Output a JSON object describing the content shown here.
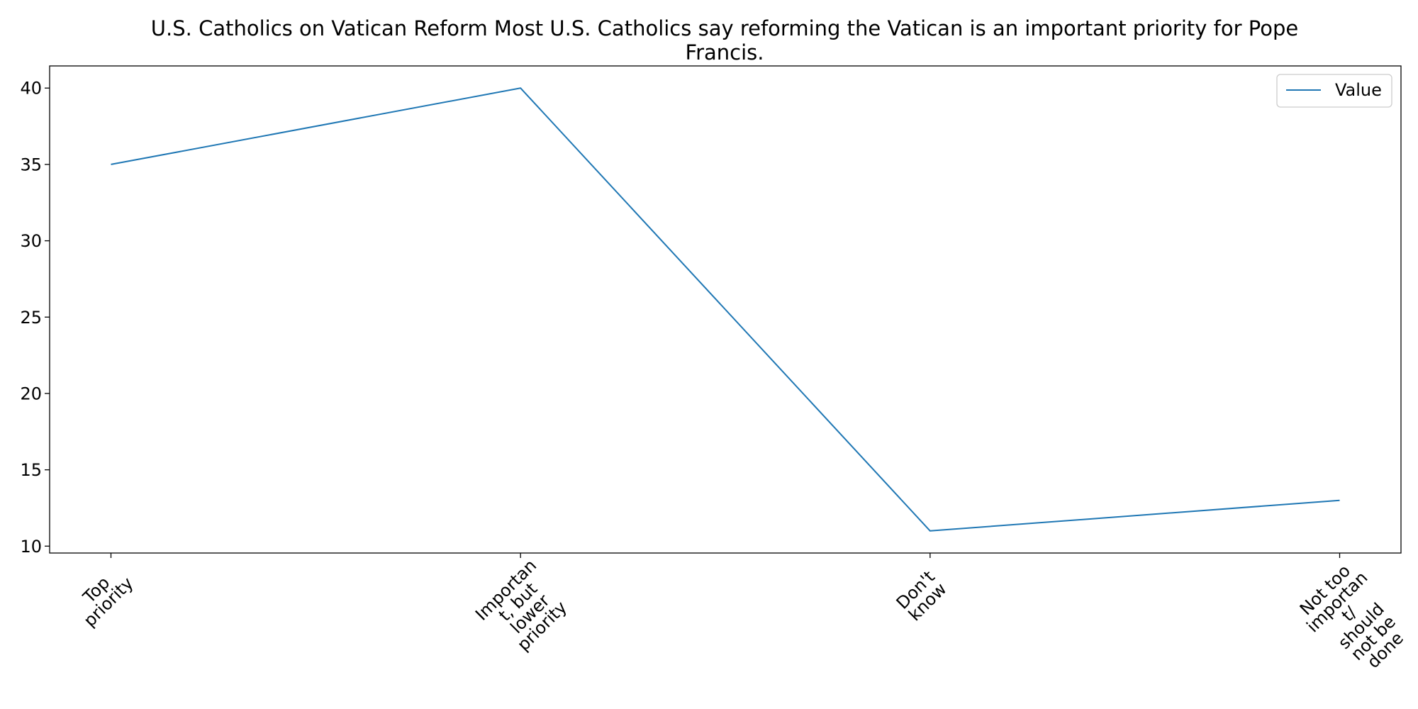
{
  "chart_data": {
    "type": "line",
    "title_lines": [
      "U.S. Catholics on Vatican Reform Most U.S. Catholics say reforming the Vatican is an important priority for Pope",
      "Francis."
    ],
    "categories": [
      [
        "Top",
        "priority"
      ],
      [
        "Importan",
        "t, but",
        "lower",
        "priority"
      ],
      [
        "Don't",
        "know"
      ],
      [
        "Not too",
        "importan",
        "t/",
        "should",
        "not be",
        "done"
      ]
    ],
    "series": [
      {
        "name": "Value",
        "color": "#1f77b4",
        "values": [
          35,
          40,
          11,
          13
        ]
      }
    ],
    "y_ticks": [
      10,
      15,
      20,
      25,
      30,
      35,
      40
    ],
    "ylim": [
      9.55,
      41.45
    ],
    "xlabel": "",
    "ylabel": "",
    "grid": false,
    "legend_position": "top-right",
    "x_tick_rotation": "45 degrees"
  }
}
